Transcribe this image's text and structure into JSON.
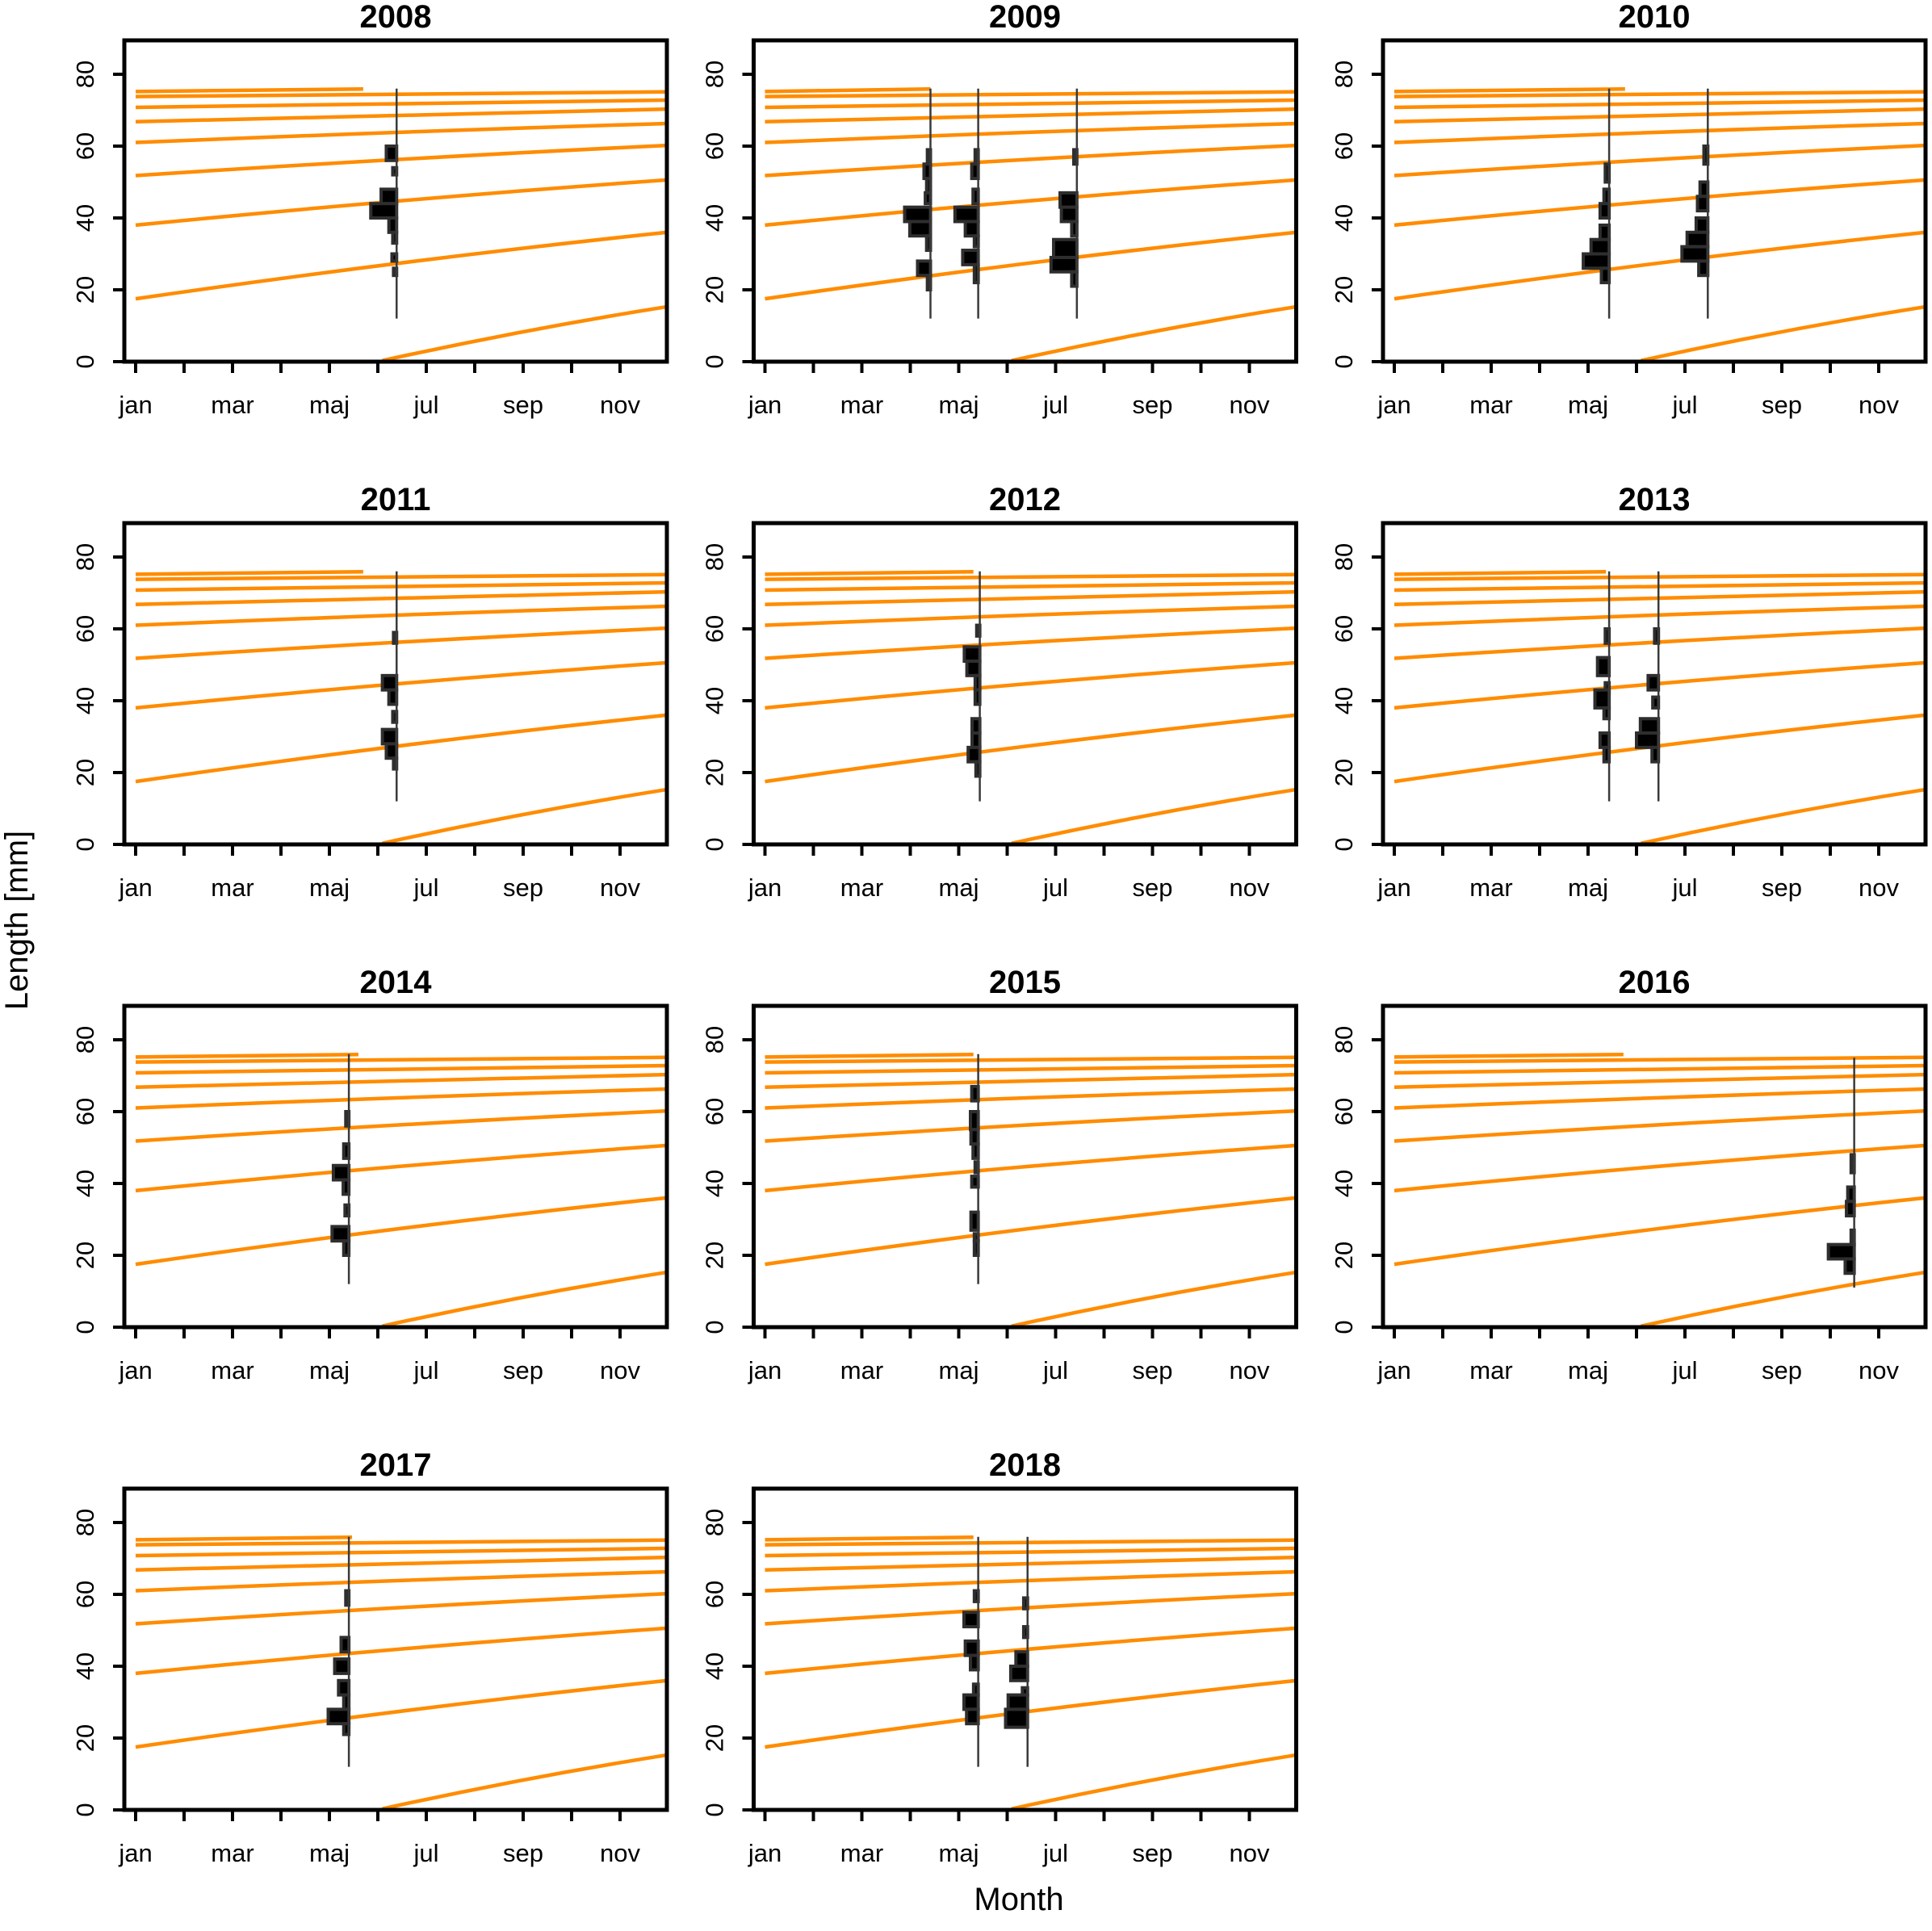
{
  "chart_data": {
    "type": "line",
    "subtype": "small-multiples growth curves with length-frequency histograms",
    "xlabel": "Month",
    "ylabel": "Length [mm]",
    "x_tick_labels": [
      "jan",
      "mar",
      "maj",
      "jul",
      "sep",
      "nov"
    ],
    "n_month_ticks": 11,
    "y_ticks": [
      0,
      20,
      40,
      60,
      80
    ],
    "ylim": [
      0,
      90
    ],
    "xlim_days": [
      0,
      334
    ],
    "grid": "off",
    "legend": "none",
    "colors": {
      "curve": "#FF8C00",
      "hist_fill": "#000000",
      "hist_stroke": "#2e2e2e",
      "sample_line": "#3a3a3a",
      "axis": "#000000",
      "background": "#ffffff"
    },
    "growth_curves": [
      {
        "d0": 0,
        "d1": 140,
        "L0": 75.2,
        "L1": 75.9
      },
      {
        "d0": 0,
        "d1": 334,
        "L0": 73.8,
        "L1": 75.1
      },
      {
        "d0": 0,
        "d1": 334,
        "L0": 70.8,
        "L1": 72.8
      },
      {
        "d0": 0,
        "d1": 334,
        "L0": 66.8,
        "L1": 70.3
      },
      {
        "d0": 0,
        "d1": 334,
        "L0": 61.0,
        "L1": 66.3
      },
      {
        "d0": 0,
        "d1": 334,
        "L0": 51.8,
        "L1": 60.2
      },
      {
        "d0": 0,
        "d1": 334,
        "L0": 38.0,
        "L1": 50.6
      },
      {
        "d0": 0,
        "d1": 334,
        "L0": 17.5,
        "L1": 36.0
      },
      {
        "d0": 155,
        "d1": 334,
        "L0": 0.3,
        "L1": 15.3
      }
    ],
    "panels": [
      {
        "year": "2008",
        "row": 0,
        "col": 0,
        "top_curve_end_day": 143,
        "samplings": [
          {
            "day": 164,
            "line": [
              12,
              76
            ],
            "bars": [
              [
                56,
                60,
                0.4
              ],
              [
                52,
                54,
                0.15
              ],
              [
                44,
                48,
                0.6
              ],
              [
                40,
                44,
                1.0
              ],
              [
                36,
                40,
                0.3
              ],
              [
                33,
                36,
                0.15
              ],
              [
                28,
                30,
                0.18
              ],
              [
                24,
                26,
                0.12
              ]
            ]
          }
        ]
      },
      {
        "year": "2009",
        "row": 0,
        "col": 1,
        "top_curve_end_day": 104,
        "samplings": [
          {
            "day": 104,
            "line": [
              12,
              76
            ],
            "bars": [
              [
                55,
                59,
                0.12
              ],
              [
                51,
                55,
                0.25
              ],
              [
                47,
                51,
                0.15
              ],
              [
                44,
                47,
                0.2
              ],
              [
                39,
                43,
                1.0
              ],
              [
                35,
                39,
                0.8
              ],
              [
                31,
                35,
                0.15
              ],
              [
                24,
                28,
                0.5
              ],
              [
                20,
                24,
                0.12
              ]
            ]
          },
          {
            "day": 134,
            "line": [
              12,
              76
            ],
            "bars": [
              [
                55,
                59,
                0.12
              ],
              [
                51,
                55,
                0.25
              ],
              [
                44,
                48,
                0.2
              ],
              [
                39,
                43,
                0.9
              ],
              [
                35,
                39,
                0.5
              ],
              [
                32,
                35,
                0.15
              ],
              [
                27,
                31,
                0.6
              ],
              [
                22,
                27,
                0.15
              ]
            ]
          },
          {
            "day": 196,
            "line": [
              12,
              76
            ],
            "bars": [
              [
                55,
                59,
                0.12
              ],
              [
                43,
                47,
                0.65
              ],
              [
                39,
                43,
                0.6
              ],
              [
                35,
                39,
                0.2
              ],
              [
                29,
                34,
                0.9
              ],
              [
                25,
                29,
                1.0
              ],
              [
                21,
                25,
                0.2
              ]
            ]
          }
        ]
      },
      {
        "year": "2010",
        "row": 0,
        "col": 2,
        "top_curve_end_day": 145,
        "samplings": [
          {
            "day": 135,
            "line": [
              12,
              76
            ],
            "bars": [
              [
                50,
                55,
                0.15
              ],
              [
                44,
                48,
                0.2
              ],
              [
                40,
                44,
                0.35
              ],
              [
                34,
                38,
                0.35
              ],
              [
                30,
                34,
                0.7
              ],
              [
                26,
                30,
                1.0
              ],
              [
                22,
                26,
                0.3
              ]
            ]
          },
          {
            "day": 197,
            "line": [
              12,
              76
            ],
            "bars": [
              [
                55,
                60,
                0.15
              ],
              [
                46,
                50,
                0.3
              ],
              [
                42,
                46,
                0.4
              ],
              [
                36,
                40,
                0.45
              ],
              [
                32,
                36,
                0.8
              ],
              [
                28,
                32,
                1.0
              ],
              [
                24,
                28,
                0.35
              ]
            ]
          }
        ]
      },
      {
        "year": "2011",
        "row": 1,
        "col": 0,
        "top_curve_end_day": 143,
        "samplings": [
          {
            "day": 164,
            "line": [
              12,
              76
            ],
            "bars": [
              [
                56,
                59,
                0.12
              ],
              [
                43,
                47,
                0.55
              ],
              [
                39,
                43,
                0.3
              ],
              [
                34,
                37,
                0.15
              ],
              [
                28,
                32,
                0.55
              ],
              [
                24,
                28,
                0.4
              ],
              [
                21,
                24,
                0.12
              ]
            ]
          }
        ]
      },
      {
        "year": "2012",
        "row": 1,
        "col": 1,
        "top_curve_end_day": 131,
        "samplings": [
          {
            "day": 135,
            "line": [
              12,
              76
            ],
            "bars": [
              [
                58,
                61,
                0.12
              ],
              [
                51,
                55,
                0.6
              ],
              [
                47,
                51,
                0.5
              ],
              [
                43,
                47,
                0.18
              ],
              [
                39,
                43,
                0.18
              ],
              [
                31,
                35,
                0.3
              ],
              [
                27,
                31,
                0.3
              ],
              [
                23,
                27,
                0.45
              ],
              [
                19,
                23,
                0.15
              ]
            ]
          }
        ]
      },
      {
        "year": "2013",
        "row": 1,
        "col": 2,
        "top_curve_end_day": 133,
        "samplings": [
          {
            "day": 135,
            "line": [
              12,
              76
            ],
            "bars": [
              [
                56,
                60,
                0.15
              ],
              [
                47,
                52,
                0.45
              ],
              [
                42,
                45,
                0.15
              ],
              [
                38,
                43,
                0.55
              ],
              [
                35,
                38,
                0.2
              ],
              [
                27,
                31,
                0.35
              ],
              [
                23,
                27,
                0.2
              ]
            ]
          },
          {
            "day": 166,
            "line": [
              12,
              76
            ],
            "bars": [
              [
                56,
                60,
                0.15
              ],
              [
                43,
                47,
                0.4
              ],
              [
                38,
                41,
                0.22
              ],
              [
                31,
                35,
                0.7
              ],
              [
                27,
                31,
                0.85
              ],
              [
                23,
                27,
                0.25
              ]
            ]
          }
        ]
      },
      {
        "year": "2014",
        "row": 2,
        "col": 0,
        "top_curve_end_day": 140,
        "samplings": [
          {
            "day": 134,
            "line": [
              12,
              76
            ],
            "bars": [
              [
                56,
                60,
                0.12
              ],
              [
                47,
                51,
                0.2
              ],
              [
                41,
                45,
                0.6
              ],
              [
                37,
                41,
                0.22
              ],
              [
                31,
                34,
                0.15
              ],
              [
                24,
                28,
                0.65
              ],
              [
                20,
                24,
                0.2
              ]
            ]
          }
        ]
      },
      {
        "year": "2015",
        "row": 2,
        "col": 1,
        "top_curve_end_day": 131,
        "samplings": [
          {
            "day": 134,
            "line": [
              12,
              76
            ],
            "bars": [
              [
                63,
                67,
                0.25
              ],
              [
                55,
                60,
                0.3
              ],
              [
                51,
                55,
                0.28
              ],
              [
                47,
                51,
                0.2
              ],
              [
                43,
                46,
                0.12
              ],
              [
                39,
                42,
                0.25
              ],
              [
                27,
                32,
                0.28
              ],
              [
                24,
                26,
                0.15
              ],
              [
                20,
                24,
                0.15
              ]
            ]
          }
        ]
      },
      {
        "year": "2016",
        "row": 2,
        "col": 2,
        "top_curve_end_day": 144,
        "samplings": [
          {
            "day": 289,
            "line": [
              11,
              75
            ],
            "bars": [
              [
                43,
                48,
                0.12
              ],
              [
                35,
                39,
                0.25
              ],
              [
                31,
                35,
                0.3
              ],
              [
                23,
                27,
                0.12
              ],
              [
                19,
                23,
                1.0
              ],
              [
                15,
                19,
                0.35
              ]
            ]
          }
        ]
      },
      {
        "year": "2017",
        "row": 3,
        "col": 0,
        "top_curve_end_day": 136,
        "samplings": [
          {
            "day": 134,
            "line": [
              12,
              76
            ],
            "bars": [
              [
                57,
                61,
                0.12
              ],
              [
                44,
                48,
                0.3
              ],
              [
                38,
                42,
                0.55
              ],
              [
                32,
                36,
                0.4
              ],
              [
                28,
                32,
                0.2
              ],
              [
                24,
                28,
                0.8
              ],
              [
                21,
                24,
                0.2
              ]
            ]
          }
        ]
      },
      {
        "year": "2018",
        "row": 3,
        "col": 1,
        "top_curve_end_day": 131,
        "samplings": [
          {
            "day": 134,
            "line": [
              12,
              76
            ],
            "bars": [
              [
                58,
                61,
                0.15
              ],
              [
                51,
                55,
                0.55
              ],
              [
                43,
                47,
                0.5
              ],
              [
                39,
                43,
                0.3
              ],
              [
                32,
                35,
                0.18
              ],
              [
                28,
                32,
                0.55
              ],
              [
                24,
                28,
                0.45
              ]
            ]
          },
          {
            "day": 165,
            "line": [
              12,
              76
            ],
            "bars": [
              [
                56,
                59,
                0.15
              ],
              [
                48,
                51,
                0.15
              ],
              [
                40,
                44,
                0.45
              ],
              [
                36,
                40,
                0.65
              ],
              [
                32,
                34,
                0.2
              ],
              [
                28,
                32,
                0.75
              ],
              [
                23,
                28,
                0.85
              ]
            ]
          }
        ]
      }
    ]
  }
}
